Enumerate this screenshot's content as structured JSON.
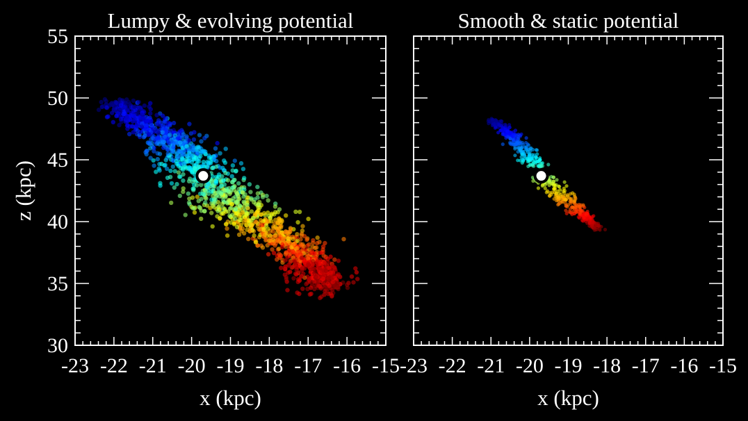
{
  "chart_data": [
    {
      "type": "scatter",
      "title": "Lumpy & evolving potential",
      "xlabel": "x (kpc)",
      "ylabel": "z (kpc)",
      "xlim": [
        -23,
        -15
      ],
      "ylim": [
        30,
        55
      ],
      "xticks": [
        "-23",
        "-22",
        "-21",
        "-20",
        "-19",
        "-18",
        "-17",
        "-16",
        "-15"
      ],
      "yticks": [
        "30",
        "35",
        "40",
        "45",
        "50",
        "55"
      ],
      "show_yticklabels": true,
      "progenitor": {
        "x": -19.7,
        "z": 43.7
      },
      "stream_spine": [
        [
          -22.0,
          49.7
        ],
        [
          -21.0,
          47.5
        ],
        [
          -20.2,
          45.5
        ],
        [
          -19.7,
          43.7
        ],
        [
          -19.0,
          41.5
        ],
        [
          -18.0,
          39.3
        ],
        [
          -17.0,
          37.0
        ],
        [
          -16.3,
          34.7
        ]
      ],
      "stream_width_kpc": 0.35,
      "n_particles": 1600,
      "colormap": "jet (blue = leading tip, red = trailing tip)"
    },
    {
      "type": "scatter",
      "title": "Smooth & static potential",
      "xlabel": "x (kpc)",
      "ylabel": "",
      "xlim": [
        -23,
        -15
      ],
      "ylim": [
        30,
        55
      ],
      "xticks": [
        "-23",
        "-22",
        "-21",
        "-20",
        "-19",
        "-18",
        "-17",
        "-16",
        "-15"
      ],
      "yticks": [
        "30",
        "35",
        "40",
        "45",
        "50",
        "55"
      ],
      "show_yticklabels": false,
      "progenitor": {
        "x": -19.7,
        "z": 43.7
      },
      "stream_spine": [
        [
          -21.0,
          48.3
        ],
        [
          -20.4,
          46.7
        ],
        [
          -19.9,
          45.0
        ],
        [
          -19.7,
          43.7
        ],
        [
          -19.4,
          42.7
        ],
        [
          -18.9,
          41.3
        ],
        [
          -18.2,
          39.3
        ]
      ],
      "stream_width_kpc": 0.12,
      "n_particles": 600,
      "colormap": "jet (blue = leading tip, red = trailing tip)"
    }
  ]
}
